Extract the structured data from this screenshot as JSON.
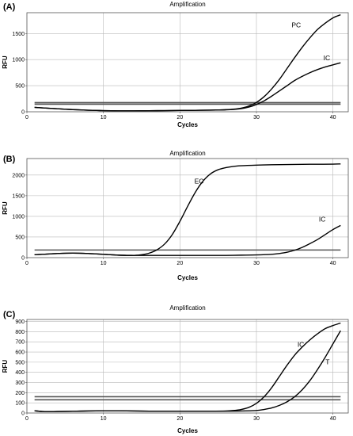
{
  "chart_data": [
    {
      "panel": "(A)",
      "type": "line",
      "title": "Amplification",
      "xlabel": "Cycles",
      "ylabel": "RFU",
      "xlim": [
        0,
        42
      ],
      "ylim": [
        0,
        1900
      ],
      "xticks": [
        0,
        10,
        20,
        30,
        40
      ],
      "yticks": [
        0,
        500,
        1000,
        1500
      ],
      "grid": true,
      "thresholds": [
        145,
        175
      ],
      "series": [
        {
          "name": "PC",
          "label_at": [
            35.2,
            1620
          ],
          "x": [
            1,
            2,
            4,
            6,
            8,
            10,
            12,
            14,
            16,
            18,
            20,
            22,
            24,
            25,
            26,
            27,
            28,
            29,
            30,
            31,
            32,
            33,
            34,
            35,
            36,
            37,
            38,
            39,
            40,
            41
          ],
          "y": [
            85,
            75,
            58,
            42,
            30,
            22,
            18,
            18,
            20,
            22,
            25,
            28,
            32,
            35,
            40,
            50,
            70,
            110,
            180,
            290,
            440,
            620,
            830,
            1040,
            1240,
            1420,
            1580,
            1700,
            1800,
            1860
          ]
        },
        {
          "name": "IC",
          "label_at": [
            39.2,
            990
          ],
          "x": [
            1,
            2,
            4,
            6,
            8,
            10,
            12,
            14,
            16,
            18,
            20,
            22,
            24,
            25,
            26,
            27,
            28,
            29,
            30,
            31,
            32,
            33,
            34,
            35,
            36,
            37,
            38,
            39,
            40,
            41
          ],
          "y": [
            85,
            75,
            58,
            42,
            30,
            22,
            18,
            18,
            20,
            22,
            25,
            28,
            32,
            35,
            38,
            45,
            60,
            90,
            140,
            210,
            300,
            400,
            500,
            600,
            680,
            750,
            810,
            860,
            900,
            940
          ]
        }
      ]
    },
    {
      "panel": "(B)",
      "type": "line",
      "title": "Amplification",
      "xlabel": "Cycles",
      "ylabel": "RFU",
      "xlim": [
        0,
        42
      ],
      "ylim": [
        0,
        2400
      ],
      "xticks": [
        0,
        10,
        20,
        30,
        40
      ],
      "yticks": [
        0,
        500,
        1000,
        1500,
        2000
      ],
      "grid": true,
      "thresholds": [
        185
      ],
      "series": [
        {
          "name": "EC",
          "label_at": [
            22.5,
            1800
          ],
          "x": [
            1,
            2,
            4,
            6,
            8,
            10,
            12,
            13,
            14,
            15,
            16,
            17,
            18,
            19,
            20,
            21,
            22,
            23,
            24,
            25,
            26,
            27,
            28,
            30,
            32,
            34,
            36,
            38,
            40,
            41
          ],
          "y": [
            70,
            80,
            100,
            110,
            100,
            80,
            60,
            55,
            55,
            70,
            110,
            190,
            330,
            560,
            880,
            1240,
            1580,
            1850,
            2030,
            2130,
            2180,
            2210,
            2225,
            2240,
            2250,
            2255,
            2260,
            2262,
            2265,
            2270
          ]
        },
        {
          "name": "IC",
          "label_at": [
            38.6,
            870
          ],
          "x": [
            1,
            2,
            4,
            6,
            8,
            10,
            12,
            14,
            16,
            18,
            20,
            22,
            24,
            26,
            28,
            30,
            32,
            33,
            34,
            35,
            36,
            37,
            38,
            39,
            40,
            41
          ],
          "y": [
            70,
            80,
            100,
            110,
            100,
            80,
            60,
            55,
            55,
            55,
            55,
            55,
            55,
            55,
            60,
            65,
            80,
            100,
            130,
            180,
            250,
            340,
            440,
            560,
            680,
            780
          ]
        }
      ]
    },
    {
      "panel": "(C)",
      "type": "line",
      "title": "Amplification",
      "xlabel": "Cycles",
      "ylabel": "RFU",
      "xlim": [
        0,
        42
      ],
      "ylim": [
        0,
        920
      ],
      "xticks": [
        0,
        10,
        20,
        30,
        40
      ],
      "yticks": [
        0,
        100,
        200,
        300,
        400,
        500,
        600,
        700,
        800,
        900
      ],
      "grid": true,
      "thresholds": [
        130,
        160
      ],
      "series": [
        {
          "name": "IC",
          "label_at": [
            35.8,
            650
          ],
          "x": [
            1,
            2,
            3,
            4,
            6,
            8,
            10,
            12,
            14,
            16,
            18,
            20,
            22,
            24,
            26,
            27,
            28,
            29,
            30,
            31,
            32,
            33,
            34,
            35,
            36,
            37,
            38,
            39,
            40,
            41
          ],
          "y": [
            22,
            15,
            14,
            15,
            17,
            20,
            22,
            22,
            20,
            18,
            18,
            18,
            18,
            18,
            20,
            25,
            35,
            55,
            95,
            160,
            250,
            360,
            470,
            570,
            650,
            720,
            780,
            830,
            860,
            885
          ]
        },
        {
          "name": "T",
          "label_at": [
            39.3,
            480
          ],
          "x": [
            1,
            2,
            3,
            4,
            6,
            8,
            10,
            12,
            14,
            16,
            18,
            20,
            22,
            24,
            26,
            28,
            30,
            31,
            32,
            33,
            34,
            35,
            36,
            37,
            38,
            39,
            40,
            41
          ],
          "y": [
            22,
            15,
            14,
            15,
            17,
            20,
            22,
            22,
            20,
            18,
            18,
            18,
            18,
            18,
            18,
            20,
            25,
            35,
            50,
            75,
            110,
            160,
            230,
            320,
            430,
            550,
            680,
            810
          ]
        }
      ]
    }
  ]
}
